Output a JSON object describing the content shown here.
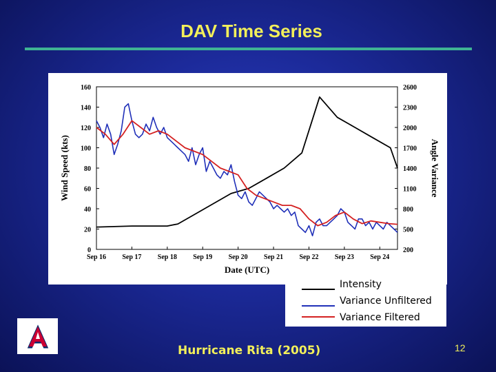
{
  "slide": {
    "title": "DAV Time Series",
    "caption": "Hurricane Rita (2005)",
    "page_number": "12"
  },
  "logo": {
    "icon": "university-of-arizona-a-logo",
    "letter": "A"
  },
  "colors": {
    "intensity": "#000000",
    "unfiltered": "#1f2fb8",
    "filtered": "#d42020",
    "accent": "#f2ef5a"
  },
  "chart_data": {
    "type": "line",
    "xlabel": "Date (UTC)",
    "ylabel": "Wind Speed (kts)",
    "y2label": "Angle Variance",
    "x_ticks": [
      "Sep 16",
      "Sep 17",
      "Sep 18",
      "Sep 19",
      "Sep 20",
      "Sep 21",
      "Sep 22",
      "Sep 23",
      "Sep 24"
    ],
    "xlim": [
      16,
      24.5
    ],
    "ylim": [
      0,
      160
    ],
    "y_ticks": [
      0,
      20,
      40,
      60,
      80,
      100,
      120,
      140,
      160
    ],
    "y2lim": [
      200,
      2600
    ],
    "y2_ticks": [
      200,
      500,
      800,
      1100,
      1400,
      1700,
      2000,
      2300,
      2600
    ],
    "legend_position": "bottom-right",
    "series": [
      {
        "name": "Intensity",
        "axis": "left",
        "x": [
          16.0,
          17.0,
          18.0,
          18.3,
          18.8,
          19.3,
          19.8,
          20.3,
          20.8,
          21.3,
          21.8,
          22.3,
          22.8,
          23.3,
          23.8,
          24.3,
          24.5
        ],
        "y": [
          22,
          23,
          23,
          25,
          35,
          45,
          55,
          60,
          70,
          80,
          95,
          150,
          130,
          120,
          110,
          100,
          80
        ]
      },
      {
        "name": "Variance Unfiltered",
        "axis": "right",
        "x": [
          16.0,
          16.1,
          16.2,
          16.3,
          16.4,
          16.5,
          16.6,
          16.7,
          16.8,
          16.9,
          17.0,
          17.1,
          17.2,
          17.3,
          17.4,
          17.5,
          17.6,
          17.7,
          17.8,
          17.9,
          18.0,
          18.1,
          18.2,
          18.3,
          18.4,
          18.5,
          18.6,
          18.7,
          18.8,
          18.9,
          19.0,
          19.1,
          19.2,
          19.3,
          19.4,
          19.5,
          19.6,
          19.7,
          19.8,
          19.9,
          20.0,
          20.1,
          20.2,
          20.3,
          20.4,
          20.5,
          20.6,
          20.7,
          20.8,
          20.9,
          21.0,
          21.1,
          21.2,
          21.3,
          21.4,
          21.5,
          21.6,
          21.7,
          21.8,
          21.9,
          22.0,
          22.1,
          22.2,
          22.3,
          22.4,
          22.5,
          22.6,
          22.7,
          22.8,
          22.9,
          23.0,
          23.1,
          23.2,
          23.3,
          23.4,
          23.5,
          23.6,
          23.7,
          23.8,
          23.9,
          24.0,
          24.1,
          24.2,
          24.3,
          24.4,
          24.5
        ],
        "y": [
          2100,
          2000,
          1850,
          2050,
          1900,
          1600,
          1750,
          1950,
          2300,
          2350,
          2100,
          1900,
          1850,
          1900,
          2050,
          1950,
          2150,
          2000,
          1900,
          2000,
          1850,
          1800,
          1750,
          1700,
          1650,
          1600,
          1500,
          1700,
          1450,
          1600,
          1700,
          1350,
          1500,
          1400,
          1300,
          1250,
          1350,
          1300,
          1450,
          1200,
          1000,
          950,
          1050,
          900,
          850,
          950,
          1050,
          1000,
          950,
          900,
          800,
          850,
          800,
          750,
          800,
          700,
          750,
          550,
          500,
          450,
          550,
          400,
          600,
          650,
          550,
          550,
          600,
          650,
          700,
          800,
          750,
          600,
          550,
          500,
          650,
          650,
          550,
          600,
          500,
          600,
          550,
          500,
          600,
          550,
          500,
          450
        ]
      },
      {
        "name": "Variance Filtered",
        "axis": "right",
        "x": [
          16.0,
          16.25,
          16.5,
          16.75,
          17.0,
          17.25,
          17.5,
          17.75,
          18.0,
          18.25,
          18.5,
          18.75,
          19.0,
          19.25,
          19.5,
          19.75,
          20.0,
          20.25,
          20.5,
          20.75,
          21.0,
          21.25,
          21.5,
          21.75,
          22.0,
          22.25,
          22.5,
          22.75,
          23.0,
          23.25,
          23.5,
          23.75,
          24.0,
          24.25,
          24.5
        ],
        "y": [
          2000,
          1900,
          1750,
          1900,
          2100,
          2000,
          1900,
          1950,
          1900,
          1800,
          1700,
          1650,
          1600,
          1500,
          1400,
          1350,
          1300,
          1100,
          1000,
          950,
          900,
          850,
          850,
          800,
          650,
          550,
          600,
          700,
          750,
          650,
          580,
          620,
          600,
          580,
          570
        ]
      }
    ]
  }
}
